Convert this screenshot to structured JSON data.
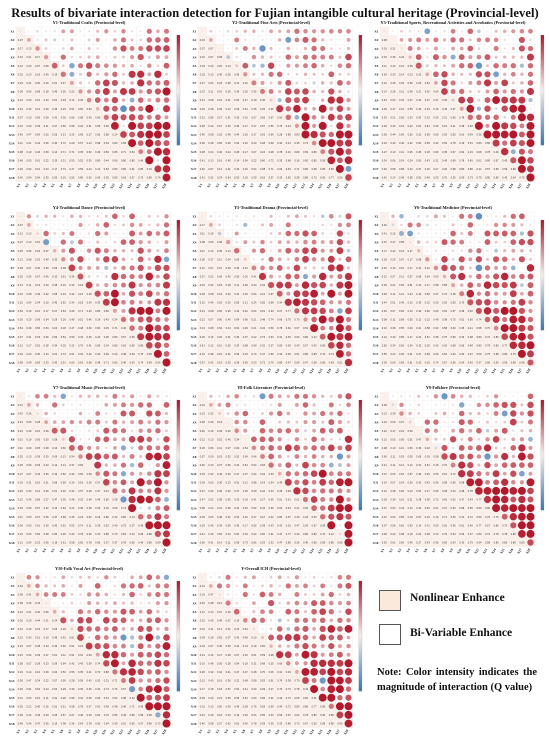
{
  "title": "Results of bivariate interaction detection for Fujian intangible cultural heritage (Provincial-level)",
  "variables": [
    "X1",
    "X2",
    "X3",
    "X4",
    "X5",
    "X6",
    "X7",
    "X8",
    "X9",
    "X10",
    "X11",
    "X12",
    "X13",
    "X14",
    "X15",
    "X16",
    "X17",
    "X18"
  ],
  "colors": {
    "nonlinear": "#c0392b",
    "bivariate": "#2c6fb0",
    "mid": "#f7ede8",
    "low": "#3b78b8",
    "high": "#b2182b",
    "legend_fill": "#fbe9dc"
  },
  "legend": {
    "nonlinear_label": "Nonlinear Enhance",
    "bivariate_label": "Bi-Variable Enhance"
  },
  "note": "Note: Color intensity indicates the magnitude of interaction (Q value)",
  "chart_data": [
    {
      "type": "heatmap",
      "title": "Y1-Traditional Crafts (Provincial-level)",
      "seed": 11
    },
    {
      "type": "heatmap",
      "title": "Y2-Traditional Fine Arts (Provincial-level)",
      "seed": 23
    },
    {
      "type": "heatmap",
      "title": "Y3-Traditional Sports, Recreational Activities and Acrobatics (Provincial-level)",
      "seed": 37
    },
    {
      "type": "heatmap",
      "title": "Y4-Traditional Dance (Provincial-level)",
      "seed": 41
    },
    {
      "type": "heatmap",
      "title": "Y5-Traditional Drama (Provincial-level)",
      "seed": 53
    },
    {
      "type": "heatmap",
      "title": "Y6-Traditional Medicine (Provincial-level)",
      "seed": 67
    },
    {
      "type": "heatmap",
      "title": "Y7-Traditional Music (Provincial-level)",
      "seed": 71
    },
    {
      "type": "heatmap",
      "title": "Y8-Folk Literature (Provincial-level)",
      "seed": 83
    },
    {
      "type": "heatmap",
      "title": "Y9-Folklore (Provincial-level)",
      "seed": 97
    },
    {
      "type": "heatmap",
      "title": "Y10-Folk Vocal Art (Provincial-level)",
      "seed": 101
    },
    {
      "type": "heatmap",
      "title": "Y-Overall ICH (Provincial-level)",
      "seed": 113
    }
  ]
}
